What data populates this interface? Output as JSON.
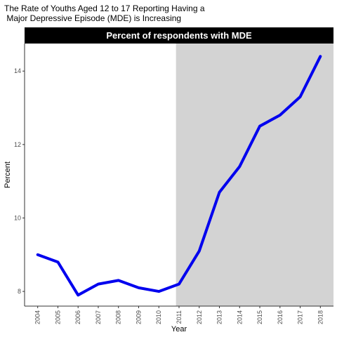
{
  "chart_data": {
    "type": "line",
    "title": [
      "The Rate of Youths Aged 12 to 17 Reporting Having a",
      " Major Depressive Episode (MDE) is Increasing"
    ],
    "strip_title": "Percent of respondents with MDE",
    "xlabel": "Year",
    "ylabel": "Percent",
    "x": [
      2004,
      2005,
      2006,
      2007,
      2008,
      2009,
      2010,
      2011,
      2012,
      2013,
      2014,
      2015,
      2016,
      2017,
      2018
    ],
    "series": [
      {
        "values": [
          9.0,
          8.8,
          7.9,
          8.2,
          8.3,
          8.1,
          8.0,
          8.2,
          9.1,
          10.7,
          11.4,
          12.5,
          12.8,
          13.3,
          14.4
        ]
      }
    ],
    "yticks": [
      8,
      10,
      12,
      14
    ],
    "ylim": [
      7.6,
      14.75
    ],
    "xlim": [
      2003.35,
      2018.65
    ],
    "shaded_region": {
      "from": 2010.85,
      "to": 2018.65,
      "color": "#d3d3d3"
    },
    "line_color": "#0000ee",
    "strip_color": "#000000",
    "grid": false
  }
}
